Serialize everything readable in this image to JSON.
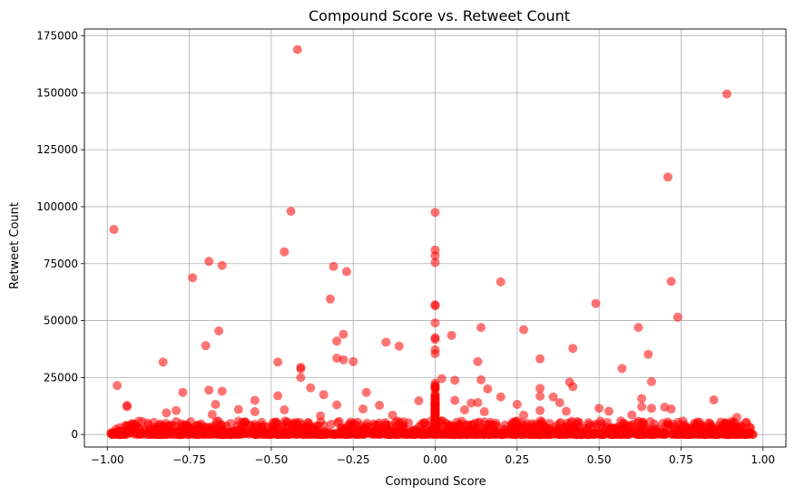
{
  "chart_data": {
    "type": "scatter",
    "title": "Compound Score vs. Retweet Count",
    "xlabel": "Compound Score",
    "ylabel": "Retweet Count",
    "xlim": [
      -1.07,
      1.07
    ],
    "ylim": [
      -5500,
      178000
    ],
    "xticks": [
      -1.0,
      -0.75,
      -0.5,
      -0.25,
      0.0,
      0.25,
      0.5,
      0.75,
      1.0
    ],
    "xtick_labels": [
      "−1.00",
      "−0.75",
      "−0.50",
      "−0.25",
      "0.00",
      "0.25",
      "0.50",
      "0.75",
      "1.00"
    ],
    "yticks": [
      0,
      25000,
      50000,
      75000,
      100000,
      125000,
      150000,
      175000
    ],
    "ytick_labels": [
      "0",
      "25000",
      "50000",
      "75000",
      "100000",
      "125000",
      "150000",
      "175000"
    ],
    "grid": true,
    "marker_color": "#ff0000",
    "marker_alpha": 0.55,
    "series": [
      {
        "values_note": "",
        "points": [
          [
            -0.42,
            169000
          ],
          [
            0.89,
            149500
          ],
          [
            0.71,
            113000
          ],
          [
            -0.98,
            90000
          ],
          [
            -0.44,
            98000
          ],
          [
            0.0,
            97500
          ],
          [
            -0.46,
            80200
          ],
          [
            0.0,
            81000
          ],
          [
            0.0,
            78500
          ],
          [
            0.0,
            75500
          ],
          [
            -0.69,
            76000
          ],
          [
            -0.65,
            74200
          ],
          [
            -0.31,
            73800
          ],
          [
            -0.27,
            71500
          ],
          [
            -0.74,
            68800
          ],
          [
            0.72,
            67200
          ],
          [
            0.2,
            67000
          ],
          [
            -0.32,
            59500
          ],
          [
            0.49,
            57500
          ],
          [
            0.0,
            57000
          ],
          [
            0.0,
            56500
          ],
          [
            0.74,
            51500
          ],
          [
            0.0,
            49000
          ],
          [
            0.14,
            47000
          ],
          [
            0.62,
            47000
          ],
          [
            0.27,
            46000
          ],
          [
            -0.66,
            45500
          ],
          [
            -0.28,
            44000
          ],
          [
            0.05,
            43500
          ],
          [
            0.0,
            42500
          ],
          [
            0.0,
            41800
          ],
          [
            -0.3,
            41000
          ],
          [
            -0.15,
            40500
          ],
          [
            -0.7,
            39000
          ],
          [
            -0.11,
            38800
          ],
          [
            0.42,
            37800
          ],
          [
            0.0,
            37200
          ],
          [
            0.0,
            35500
          ],
          [
            0.65,
            35200
          ],
          [
            -0.3,
            33500
          ],
          [
            0.32,
            33200
          ],
          [
            -0.28,
            32800
          ],
          [
            -0.25,
            32000
          ],
          [
            -0.83,
            31800
          ],
          [
            -0.48,
            31800
          ],
          [
            0.13,
            32000
          ],
          [
            -0.41,
            29500
          ],
          [
            -0.41,
            28800
          ],
          [
            0.57,
            29000
          ],
          [
            -0.41,
            25000
          ],
          [
            0.02,
            24500
          ],
          [
            0.06,
            23800
          ],
          [
            0.14,
            24000
          ],
          [
            0.66,
            23200
          ],
          [
            0.41,
            23000
          ],
          [
            -0.97,
            21500
          ],
          [
            0.0,
            22500
          ],
          [
            0.42,
            21000
          ],
          [
            0.32,
            20200
          ],
          [
            -0.69,
            19500
          ],
          [
            -0.65,
            19000
          ],
          [
            -0.77,
            18500
          ],
          [
            -0.38,
            20500
          ],
          [
            0.16,
            20000
          ],
          [
            -0.21,
            18500
          ],
          [
            -0.34,
            17500
          ],
          [
            -0.48,
            17000
          ],
          [
            0.36,
            16500
          ],
          [
            0.2,
            16500
          ],
          [
            0.32,
            16800
          ],
          [
            0.63,
            15800
          ],
          [
            0.85,
            15200
          ],
          [
            -0.55,
            15000
          ],
          [
            -0.05,
            14800
          ],
          [
            0.06,
            15000
          ],
          [
            0.38,
            14000
          ],
          [
            0.13,
            14000
          ],
          [
            -0.94,
            12800
          ],
          [
            -0.94,
            12200
          ],
          [
            -0.67,
            13200
          ],
          [
            -0.3,
            13000
          ],
          [
            -0.17,
            12800
          ],
          [
            0.11,
            13800
          ],
          [
            0.25,
            13200
          ],
          [
            0.7,
            12000
          ],
          [
            0.72,
            11200
          ],
          [
            0.66,
            11500
          ],
          [
            -0.6,
            11000
          ],
          [
            -0.22,
            11200
          ],
          [
            0.0,
            12000
          ],
          [
            0.5,
            11500
          ],
          [
            0.63,
            12200
          ],
          [
            0.09,
            10800
          ],
          [
            -0.79,
            10500
          ],
          [
            -0.82,
            9500
          ],
          [
            -0.55,
            10000
          ],
          [
            -0.46,
            10800
          ],
          [
            0.32,
            10500
          ],
          [
            0.53,
            10200
          ],
          [
            0.4,
            10200
          ],
          [
            0.15,
            10000
          ],
          [
            -0.68,
            8800
          ],
          [
            -0.35,
            8200
          ],
          [
            -0.13,
            8500
          ],
          [
            0.27,
            8500
          ],
          [
            0.6,
            8600
          ],
          [
            0.92,
            7500
          ],
          [
            0.8,
            5500
          ],
          [
            0.95,
            5000
          ]
        ]
      }
    ],
    "dense_band": {
      "x_min": -0.99,
      "x_max": 0.97,
      "y_max_typical": 6000
    }
  }
}
